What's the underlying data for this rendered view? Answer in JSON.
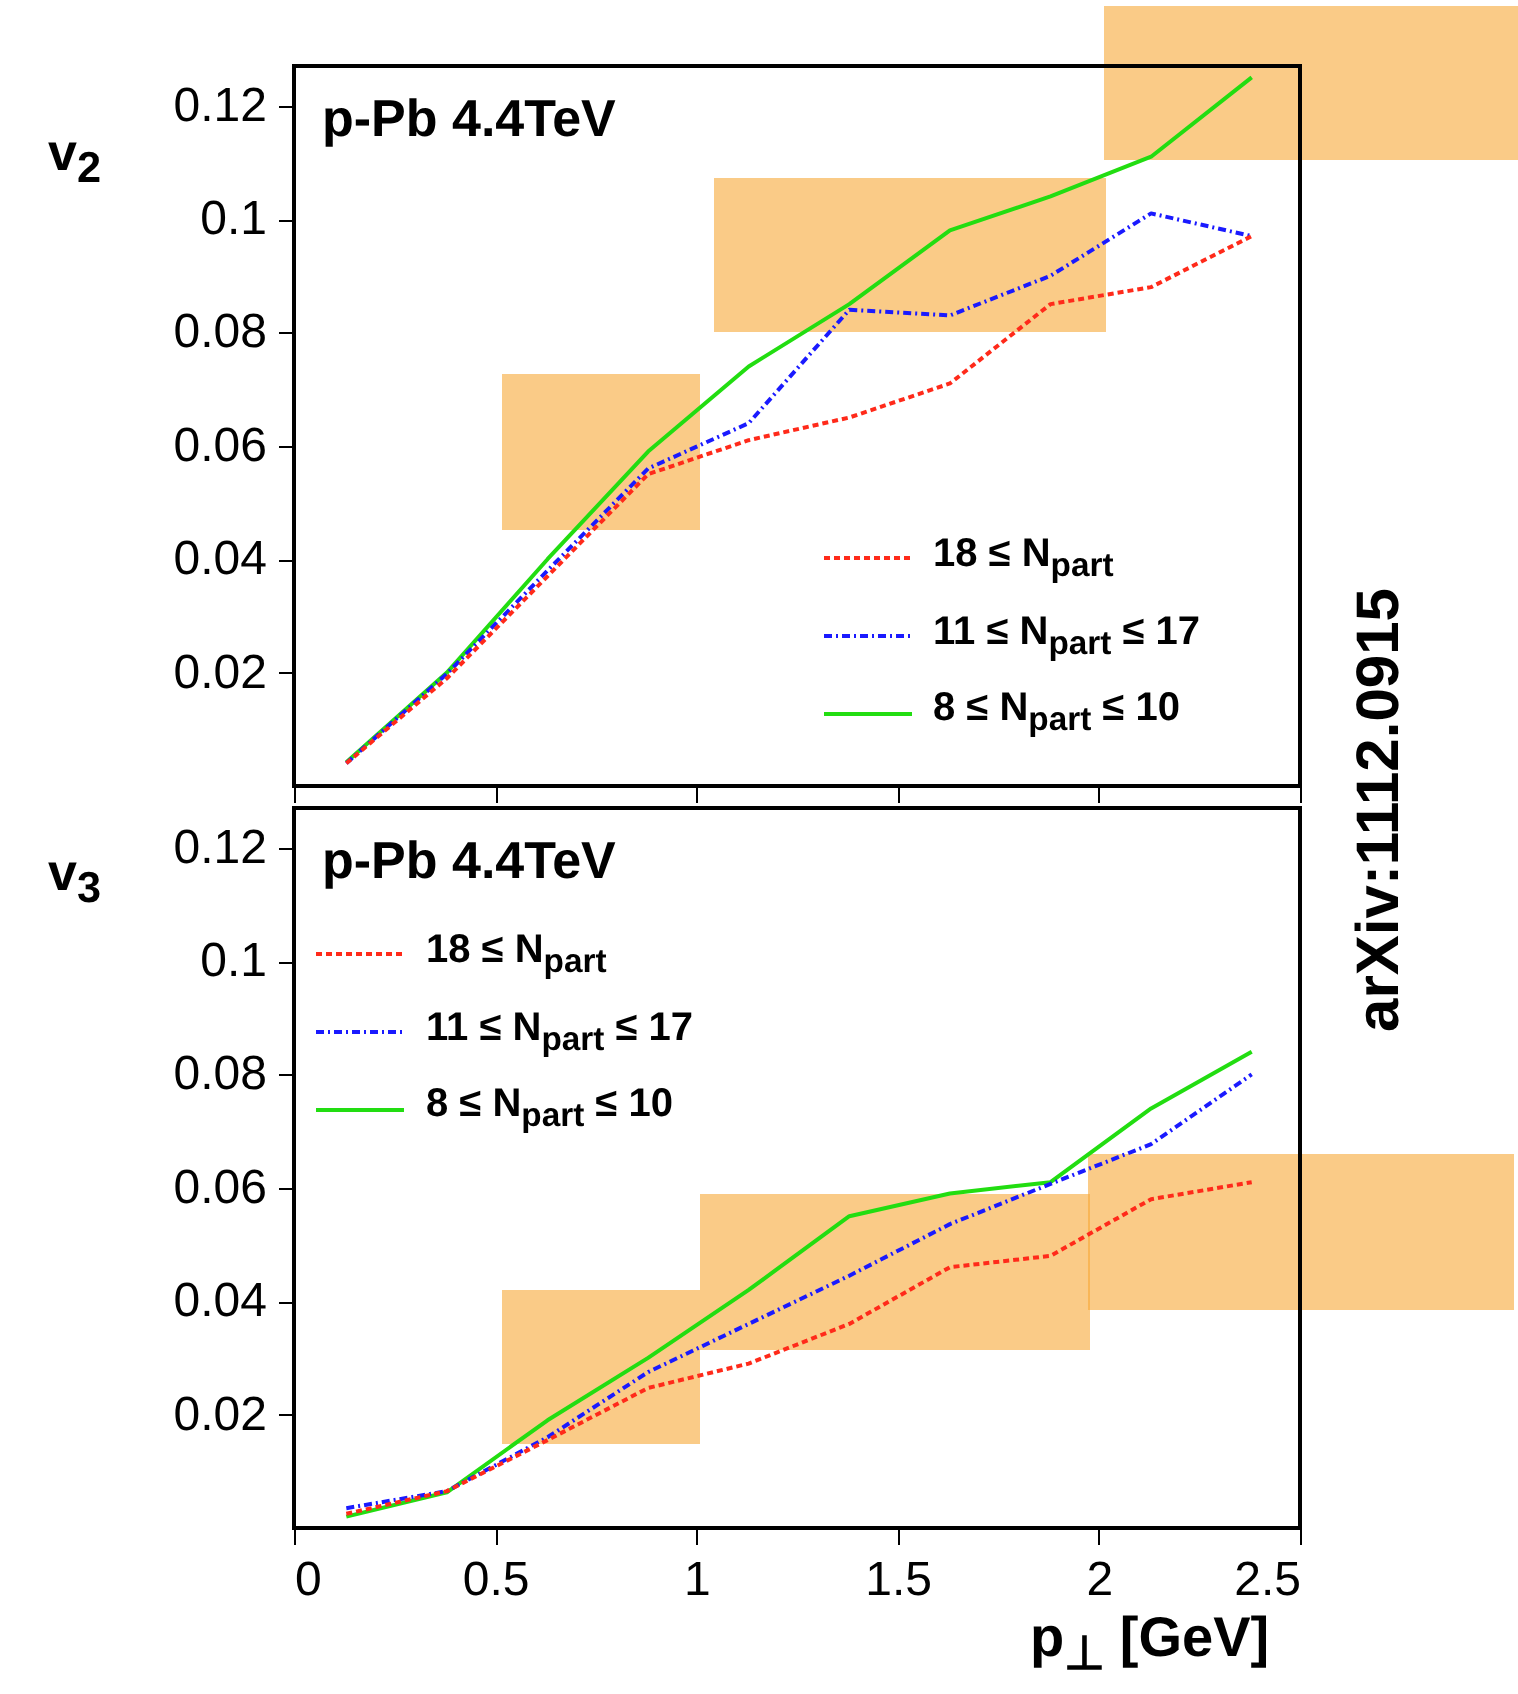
{
  "chart_data": [
    {
      "type": "line",
      "title": "p-Pb 4.4TeV",
      "ylabel": "v$_{2}$",
      "x": [
        0.13,
        0.38,
        0.63,
        0.88,
        1.13,
        1.38,
        1.63,
        1.88,
        2.13,
        2.38
      ],
      "series": [
        {
          "name": "18 ≤ N$_{part}$",
          "color": "#ff2a1a",
          "line_style": "dashed",
          "values": [
            0.004,
            0.019,
            0.037,
            0.055,
            0.061,
            0.065,
            0.071,
            0.085,
            0.088,
            0.097
          ]
        },
        {
          "name": "11 ≤ N$_{part}$ ≤ 17",
          "color": "#1a1aff",
          "line_style": "dotted",
          "values": [
            0.004,
            0.0198,
            0.038,
            0.056,
            0.064,
            0.084,
            0.083,
            0.09,
            0.101,
            0.097
          ]
        },
        {
          "name": "8 ≤ N$_{part}$ ≤ 10",
          "color": "#22dd11",
          "line_style": "solid",
          "values": [
            0.0042,
            0.02,
            0.04,
            0.059,
            0.074,
            0.085,
            0.098,
            0.104,
            0.111,
            0.125
          ]
        }
      ],
      "xlim": [
        0,
        2.5
      ],
      "xticks": [
        0,
        0.5,
        1,
        1.5,
        2,
        2.5
      ],
      "ylim": [
        0,
        0.127
      ],
      "yticks": [
        0.02,
        0.04,
        0.06,
        0.08,
        0.1,
        0.12
      ],
      "tick_labels": "y",
      "legend": "bottom right",
      "annotations": [
        "arXiv:1112.0915"
      ]
    },
    {
      "type": "line",
      "title": "p-Pb 4.4TeV",
      "ylabel": "v$_{3}$",
      "xlabel": "p$_{⊥}$ [GeV]",
      "x": [
        0.13,
        0.38,
        0.63,
        0.88,
        1.13,
        1.38,
        1.63,
        1.88,
        2.13,
        2.38
      ],
      "series": [
        {
          "name": "18 ≤ N$_{part}$",
          "color": "#ff2a1a",
          "line_style": "dashed",
          "values": [
            0.0025,
            0.0065,
            0.0155,
            0.0247,
            0.029,
            0.036,
            0.046,
            0.048,
            0.058,
            0.061
          ]
        },
        {
          "name": "11 ≤ N$_{part}$ ≤ 17",
          "color": "#1a1aff",
          "line_style": "dotted",
          "values": [
            0.0035,
            0.0065,
            0.016,
            0.0275,
            0.036,
            0.0445,
            0.0536,
            0.0607,
            0.0677,
            0.08
          ]
        },
        {
          "name": "8 ≤ N$_{part}$ ≤ 10",
          "color": "#22dd11",
          "line_style": "solid",
          "values": [
            0.002,
            0.0063,
            0.019,
            0.03,
            0.042,
            0.055,
            0.059,
            0.061,
            0.074,
            0.084
          ]
        }
      ],
      "xlim": [
        0,
        2.5
      ],
      "xticks": [
        0,
        0.5,
        1,
        1.5,
        2,
        2.5
      ],
      "ylim": [
        0,
        0.127
      ],
      "yticks": [
        0.02,
        0.04,
        0.06,
        0.08,
        0.1,
        0.12
      ],
      "legend": "top left"
    }
  ]
}
